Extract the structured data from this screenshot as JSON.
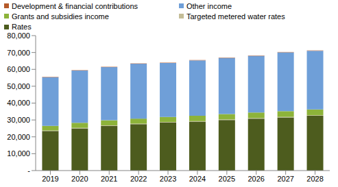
{
  "chart_data": {
    "type": "bar",
    "stacked": true,
    "grid": false,
    "categories": [
      "2019",
      "2020",
      "2021",
      "2022",
      "2023",
      "2024",
      "2025",
      "2026",
      "2027",
      "2028"
    ],
    "series": [
      {
        "name": "Rates",
        "color": "#4d5c1e",
        "values": [
          23500,
          25000,
          26500,
          27500,
          28500,
          29000,
          30000,
          30800,
          31500,
          32500
        ]
      },
      {
        "name": "Targeted metered water rates",
        "color": "#c4bd97",
        "values": [
          300,
          300,
          300,
          300,
          300,
          300,
          300,
          300,
          300,
          300
        ]
      },
      {
        "name": "Grants and subsidies income",
        "color": "#8db33a",
        "values": [
          2700,
          3000,
          3000,
          3000,
          3000,
          3200,
          3200,
          3300,
          3400,
          3400
        ]
      },
      {
        "name": "Other income",
        "color": "#6f9fd8",
        "values": [
          28800,
          31000,
          31500,
          32500,
          32000,
          32800,
          33300,
          33600,
          34900,
          34800
        ]
      },
      {
        "name": "Development & financial contributions",
        "color": "#b55a2a",
        "values": [
          200,
          200,
          200,
          200,
          200,
          200,
          200,
          200,
          200,
          200
        ]
      }
    ],
    "ylim": [
      0,
      80000
    ],
    "yticks": [
      {
        "value": 0,
        "label": "-"
      },
      {
        "value": 10000,
        "label": "10,000"
      },
      {
        "value": 20000,
        "label": "20,000"
      },
      {
        "value": 30000,
        "label": "30,000"
      },
      {
        "value": 40000,
        "label": "40,000"
      },
      {
        "value": 50000,
        "label": "50,000"
      },
      {
        "value": 60000,
        "label": "60,000"
      },
      {
        "value": 70000,
        "label": "70,000"
      },
      {
        "value": 80000,
        "label": "80,000"
      }
    ]
  }
}
